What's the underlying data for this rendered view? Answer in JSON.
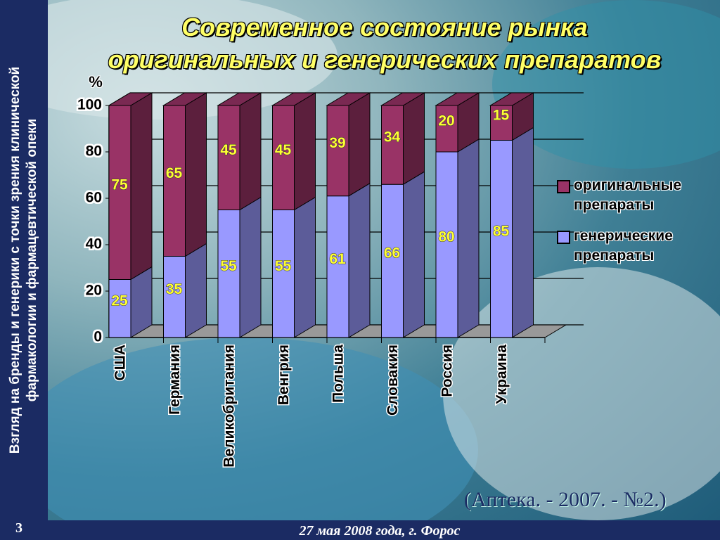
{
  "sidebar": "Взгляд на бренды и генерики с точки зрения клинической\nфармакологии и фармацевтической опеки",
  "slide_number": "3",
  "footer": "27 мая 2008 года, г. Форос",
  "source": "(Аптека. - 2007. - №2.)",
  "chart_data": {
    "type": "bar3d_stacked",
    "title": "Современное состояние рынка\nоригинальных и генерических  препаратов",
    "y_label": "%",
    "categories": [
      "США",
      "Германия",
      "Великобритания",
      "Венгрия",
      "Польша",
      "Словакия",
      "Россия",
      "Украина"
    ],
    "series": [
      {
        "name": "оригинальные препараты",
        "color": "#993366",
        "values": [
          75,
          65,
          45,
          45,
          39,
          34,
          20,
          15
        ]
      },
      {
        "name": "генерические препараты",
        "color": "#9999ff",
        "values": [
          25,
          35,
          55,
          55,
          61,
          66,
          80,
          85
        ]
      }
    ],
    "ylim": [
      0,
      100
    ],
    "yticks": [
      0,
      20,
      40,
      60,
      80,
      100
    ],
    "grid": true,
    "legend": "right"
  }
}
